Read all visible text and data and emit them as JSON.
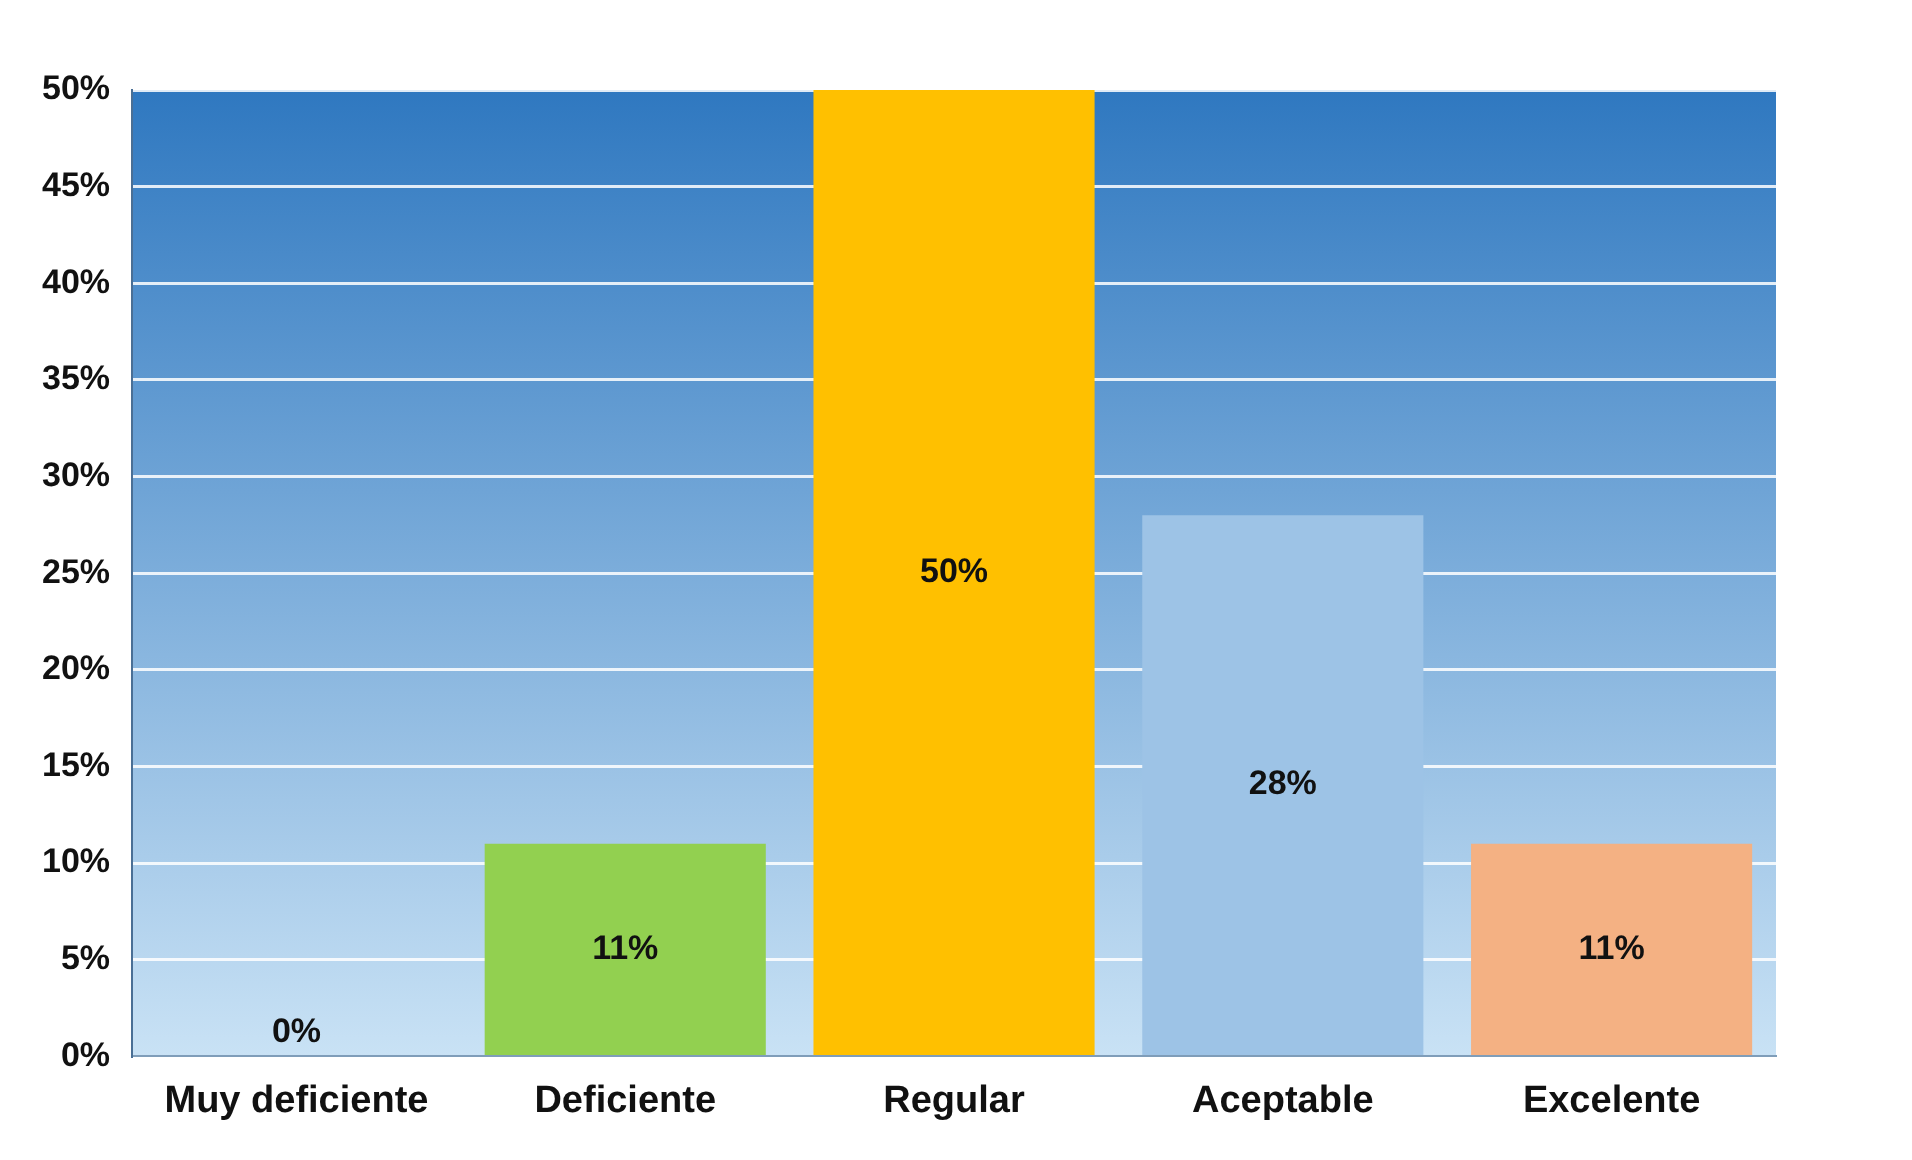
{
  "chart_data": {
    "type": "bar",
    "categories": [
      "Muy deficiente",
      "Deficiente",
      "Regular",
      "Aceptable",
      "Excelente"
    ],
    "values": [
      0,
      11,
      50,
      28,
      11
    ],
    "colors": [
      "#d04040",
      "#92d050",
      "#ffc000",
      "#9dc3e6",
      "#f4b183"
    ],
    "value_labels": [
      "0%",
      "11%",
      "50%",
      "28%",
      "11%"
    ],
    "ylim": [
      0,
      50
    ],
    "yticks": [
      {
        "value": 0,
        "label": "0%"
      },
      {
        "value": 5,
        "label": "5%"
      },
      {
        "value": 10,
        "label": "10%"
      },
      {
        "value": 15,
        "label": "15%"
      },
      {
        "value": 20,
        "label": "20%"
      },
      {
        "value": 25,
        "label": "25%"
      },
      {
        "value": 30,
        "label": "30%"
      },
      {
        "value": 35,
        "label": "35%"
      },
      {
        "value": 40,
        "label": "40%"
      },
      {
        "value": 45,
        "label": "45%"
      },
      {
        "value": 50,
        "label": "50%"
      }
    ],
    "grid": "y",
    "legend": false
  }
}
